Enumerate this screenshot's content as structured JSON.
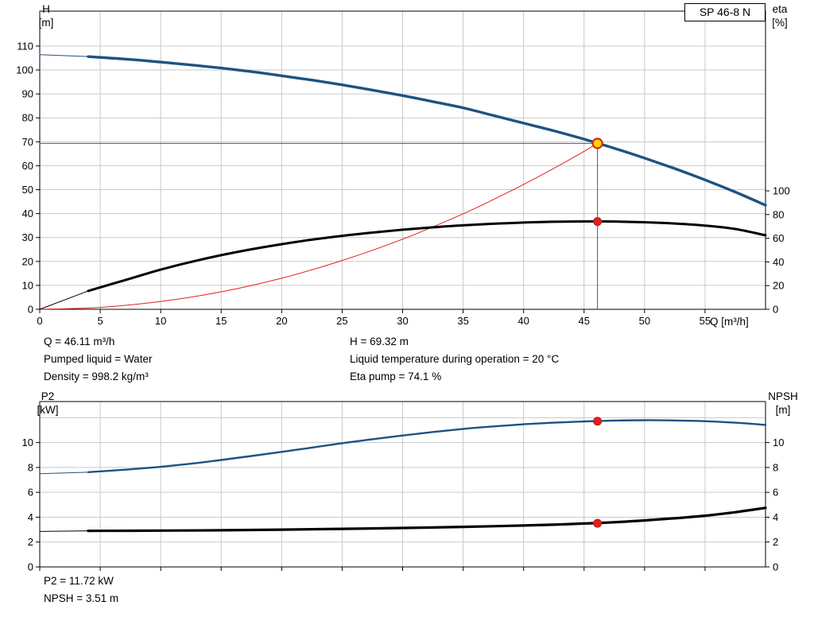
{
  "results_top": {
    "col1": [
      "Q = 46.11 m³/h",
      "Pumped liquid = Water",
      "Density = 998.2 kg/m³"
    ],
    "col2": [
      "H = 69.32 m",
      "Liquid temperature during operation = 20 °C",
      "Eta pump = 74.1 %"
    ]
  },
  "results_bottom": [
    "P2 = 11.72 kW",
    "NPSH = 3.51 m"
  ],
  "chart_data": [
    {
      "id": "hq-chart",
      "type": "line",
      "title": "SP 46-8 N",
      "xlabel": "Q [m³/h]",
      "ylabel_left_lines": [
        "H",
        "[m]"
      ],
      "ylabel_right_lines": [
        "eta",
        "[%]"
      ],
      "x_range": [
        0,
        60
      ],
      "x_ticks": [
        0,
        5,
        10,
        15,
        20,
        25,
        30,
        35,
        40,
        45,
        50,
        55
      ],
      "y_left_range": [
        0,
        124.6
      ],
      "y_left_ticks": [
        0,
        10,
        20,
        30,
        40,
        50,
        60,
        70,
        80,
        90,
        100,
        110
      ],
      "y_right_range": [
        0,
        251.7
      ],
      "y_right_ticks": [
        0,
        20,
        40,
        60,
        80,
        100
      ],
      "grid_x_values": [
        5,
        10,
        15,
        20,
        25,
        30,
        35,
        40,
        45,
        50,
        55
      ],
      "grid_y_values": [
        10,
        20,
        30,
        40,
        50,
        60,
        70,
        80,
        90,
        100,
        110
      ],
      "grid_color": "#c9c9c9",
      "frame_color": "#000000",
      "series": [
        {
          "name": "h-curve-lead",
          "axis": "left",
          "color": "#1f5280",
          "width": 1,
          "points": [
            [
              0,
              106.4
            ],
            [
              4,
              105.6
            ]
          ]
        },
        {
          "name": "h-curve",
          "axis": "left",
          "color": "#1f5280",
          "width": 3.4,
          "points": [
            [
              4,
              105.6
            ],
            [
              7.5,
              104.4
            ],
            [
              10,
              103.3
            ],
            [
              12.5,
              102.1
            ],
            [
              15,
              100.8
            ],
            [
              17.5,
              99.3
            ],
            [
              20,
              97.6
            ],
            [
              22.5,
              95.8
            ],
            [
              25,
              93.8
            ],
            [
              27.5,
              91.6
            ],
            [
              30,
              89.3
            ],
            [
              32.5,
              86.8
            ],
            [
              35,
              84.2
            ],
            [
              37.5,
              81.0
            ],
            [
              40,
              77.8
            ],
            [
              42.5,
              74.6
            ],
            [
              45,
              71.1
            ],
            [
              47.5,
              67.3
            ],
            [
              50,
              63.2
            ],
            [
              52.5,
              58.8
            ],
            [
              55,
              54.1
            ],
            [
              57.5,
              49.0
            ],
            [
              60,
              43.5
            ]
          ]
        },
        {
          "name": "system-curve",
          "axis": "left",
          "color": "#e0211a",
          "width": 1,
          "points": [
            [
              0,
              0
            ],
            [
              5,
              0.8
            ],
            [
              10,
              3.3
            ],
            [
              15,
              7.3
            ],
            [
              20,
              13.0
            ],
            [
              25,
              20.4
            ],
            [
              30,
              29.3
            ],
            [
              35,
              39.9
            ],
            [
              38,
              47.1
            ],
            [
              41,
              54.8
            ],
            [
              44,
              63.1
            ],
            [
              46.11,
              69.32
            ]
          ]
        },
        {
          "name": "eta-curve-lead",
          "axis": "right",
          "color": "#000000",
          "width": 1,
          "points": [
            [
              0,
              0
            ],
            [
              4,
              15.5
            ]
          ]
        },
        {
          "name": "eta-curve",
          "axis": "right",
          "color": "#000000",
          "width": 3,
          "points": [
            [
              4,
              15.5
            ],
            [
              7.5,
              26
            ],
            [
              10,
              33.5
            ],
            [
              12.5,
              40
            ],
            [
              15,
              45.7
            ],
            [
              17.5,
              50.7
            ],
            [
              20,
              55
            ],
            [
              22.5,
              58.8
            ],
            [
              25,
              62
            ],
            [
              27.5,
              64.8
            ],
            [
              30,
              67.2
            ],
            [
              32.5,
              69.2
            ],
            [
              35,
              70.9
            ],
            [
              37.5,
              72.2
            ],
            [
              40,
              73.2
            ],
            [
              42.5,
              73.9
            ],
            [
              45,
              74.2
            ],
            [
              47.5,
              74.1
            ],
            [
              50,
              73.5
            ],
            [
              52.5,
              72.4
            ],
            [
              55,
              70.7
            ],
            [
              57.5,
              67.8
            ],
            [
              60,
              62.5
            ]
          ]
        }
      ],
      "reference_lines": [
        {
          "orient": "v",
          "x": 46.11,
          "yFrom": 0,
          "yTo": 69.32,
          "axis": "left",
          "color": "#555555",
          "width": 1
        },
        {
          "orient": "h",
          "y": 69.32,
          "xFrom": 0,
          "xTo": 46.11,
          "axis": "left",
          "color": "#555555",
          "width": 1
        }
      ],
      "markers": [
        {
          "name": "duty-point-marker",
          "x": 46.11,
          "y": 69.32,
          "axis": "left",
          "r": 6,
          "fill": "#ffd800",
          "stroke": "#e0211a",
          "strokeWidth": 2.2
        },
        {
          "name": "eta-point-marker",
          "x": 46.11,
          "y": 74.1,
          "axis": "right",
          "r": 5,
          "fill": "#e0211a",
          "stroke": "#c01712",
          "strokeWidth": 1
        }
      ],
      "operating_point": {
        "Q_m3h": 46.11,
        "H_m": 69.32,
        "eta_pct": 74.1
      }
    },
    {
      "id": "p2-npsh-chart",
      "type": "line",
      "title": "",
      "xlabel": "",
      "ylabel_left_lines": [
        "P2",
        "[kW]"
      ],
      "ylabel_right_lines": [
        "NPSH",
        "[m]"
      ],
      "x_range": [
        0,
        60
      ],
      "x_ticks": [
        0,
        5,
        10,
        15,
        20,
        25,
        30,
        35,
        40,
        45,
        50,
        55
      ],
      "x_tick_labels_visible": false,
      "y_left_range": [
        0,
        13.3
      ],
      "y_left_ticks": [
        0,
        2,
        4,
        6,
        8,
        10
      ],
      "y_right_range": [
        0,
        13.3
      ],
      "y_right_ticks": [
        0,
        2,
        4,
        6,
        8,
        10
      ],
      "grid_x_values": [
        5,
        10,
        15,
        20,
        25,
        30,
        35,
        40,
        45,
        50,
        55
      ],
      "grid_y_values": [
        2,
        4,
        6,
        8,
        10,
        12
      ],
      "grid_color": "#c9c9c9",
      "frame_color": "#000000",
      "series": [
        {
          "name": "p2-curve-lead",
          "axis": "left",
          "color": "#1f5280",
          "width": 1,
          "points": [
            [
              0,
              7.5
            ],
            [
              4,
              7.62
            ]
          ]
        },
        {
          "name": "p2-curve",
          "axis": "left",
          "color": "#1f5280",
          "width": 2.4,
          "points": [
            [
              4,
              7.62
            ],
            [
              7.5,
              7.85
            ],
            [
              10,
              8.05
            ],
            [
              12.5,
              8.3
            ],
            [
              15,
              8.6
            ],
            [
              17.5,
              8.92
            ],
            [
              20,
              9.25
            ],
            [
              22.5,
              9.6
            ],
            [
              25,
              9.95
            ],
            [
              27.5,
              10.27
            ],
            [
              30,
              10.57
            ],
            [
              32.5,
              10.85
            ],
            [
              35,
              11.1
            ],
            [
              37.5,
              11.3
            ],
            [
              40,
              11.47
            ],
            [
              42.5,
              11.6
            ],
            [
              45,
              11.7
            ],
            [
              47.5,
              11.77
            ],
            [
              50,
              11.8
            ],
            [
              52.5,
              11.78
            ],
            [
              55,
              11.72
            ],
            [
              57.5,
              11.6
            ],
            [
              60,
              11.42
            ]
          ]
        },
        {
          "name": "npsh-curve-lead",
          "axis": "left",
          "color": "#000000",
          "width": 1,
          "points": [
            [
              0,
              2.85
            ],
            [
              4,
              2.9
            ]
          ]
        },
        {
          "name": "npsh-curve",
          "axis": "left",
          "color": "#000000",
          "width": 3.2,
          "points": [
            [
              4,
              2.9
            ],
            [
              10,
              2.92
            ],
            [
              15,
              2.95
            ],
            [
              20,
              3.0
            ],
            [
              25,
              3.06
            ],
            [
              30,
              3.13
            ],
            [
              35,
              3.22
            ],
            [
              40,
              3.33
            ],
            [
              44,
              3.45
            ],
            [
              48,
              3.62
            ],
            [
              52,
              3.88
            ],
            [
              55,
              4.12
            ],
            [
              57.5,
              4.4
            ],
            [
              60,
              4.75
            ]
          ]
        }
      ],
      "reference_lines": [],
      "markers": [
        {
          "name": "p2-point-marker",
          "x": 46.11,
          "y": 11.72,
          "axis": "left",
          "r": 5,
          "fill": "#e0211a",
          "stroke": "#c01712",
          "strokeWidth": 1
        },
        {
          "name": "npsh-point-marker",
          "x": 46.11,
          "y": 3.51,
          "axis": "left",
          "r": 5,
          "fill": "#e0211a",
          "stroke": "#c01712",
          "strokeWidth": 1
        }
      ],
      "operating_point": {
        "Q_m3h": 46.11,
        "P2_kW": 11.72,
        "NPSH_m": 3.51
      }
    }
  ]
}
